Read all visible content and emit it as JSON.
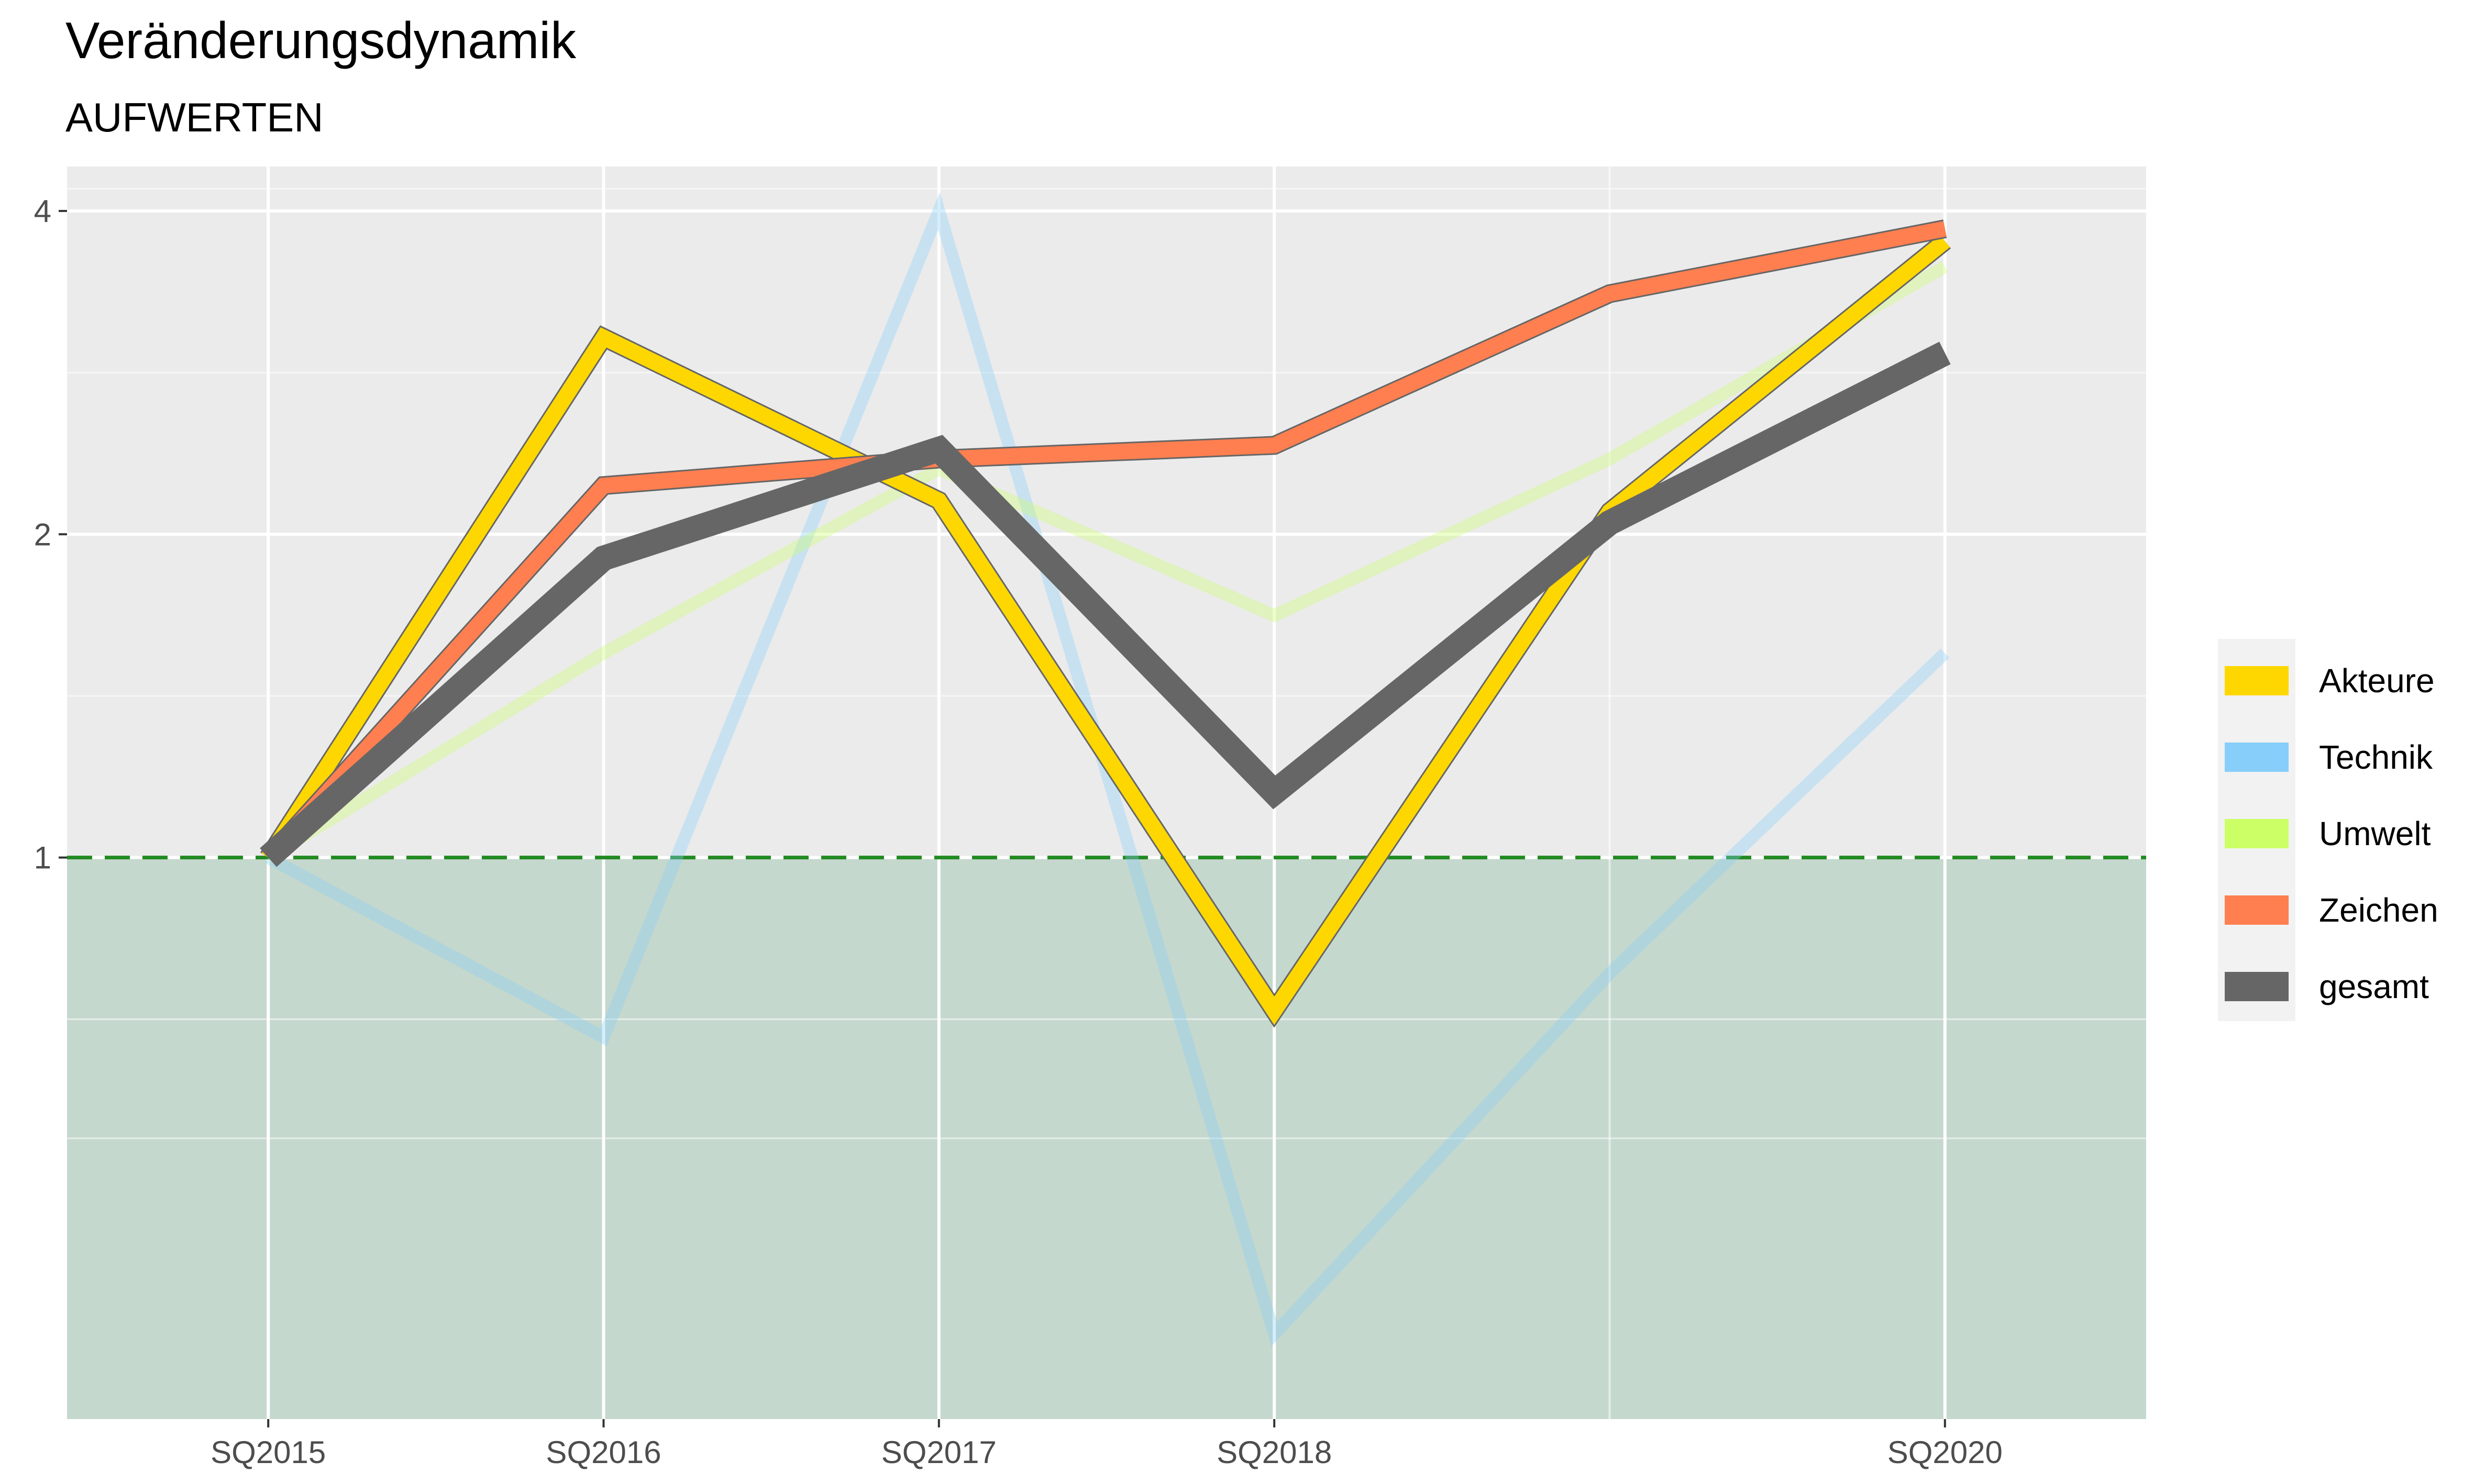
{
  "chart_data": {
    "type": "line",
    "title": "Veränderungsdynamik",
    "subtitle": "AUFWERTEN",
    "xlabel": "",
    "ylabel": "",
    "y_scale": "log2",
    "ylim": [
      0.3,
      4.4
    ],
    "y_ticks": [
      1,
      2,
      4
    ],
    "x": [
      2015,
      2016,
      2017,
      2018,
      2019,
      2020
    ],
    "x_ticks": [
      {
        "value": 2015,
        "label": "SQ2015"
      },
      {
        "value": 2016,
        "label": "SQ2016"
      },
      {
        "value": 2017,
        "label": "SQ2017"
      },
      {
        "value": 2018,
        "label": "SQ2018"
      },
      {
        "value": 2020,
        "label": "SQ2020"
      }
    ],
    "xlim": [
      2014.4,
      2020.6
    ],
    "reference_line": {
      "y": 1,
      "color": "#228B22",
      "style": "dashed"
    },
    "shaded_below_reference": {
      "color": "#2E8B57",
      "opacity": 0.2
    },
    "grid": true,
    "legend_position": "right",
    "series": [
      {
        "name": "Akteure",
        "color": "#FFD700",
        "values": [
          1.0,
          3.05,
          2.15,
          0.72,
          2.1,
          3.75
        ],
        "emphasis": "strong"
      },
      {
        "name": "Technik",
        "color": "#87CEFA",
        "values": [
          1.0,
          0.68,
          4.0,
          0.36,
          0.78,
          1.55
        ],
        "emphasis": "faint"
      },
      {
        "name": "Umwelt",
        "color": "#CCFF66",
        "values": [
          1.0,
          1.55,
          2.3,
          1.68,
          2.35,
          3.55
        ],
        "emphasis": "faint"
      },
      {
        "name": "Zeichen",
        "color": "#FF7F50",
        "values": [
          1.0,
          2.22,
          2.35,
          2.42,
          3.35,
          3.85
        ],
        "emphasis": "strong"
      },
      {
        "name": "gesamt",
        "color": "#666666",
        "values": [
          1.0,
          1.9,
          2.4,
          1.15,
          2.05,
          2.95
        ],
        "emphasis": "thick"
      }
    ]
  }
}
